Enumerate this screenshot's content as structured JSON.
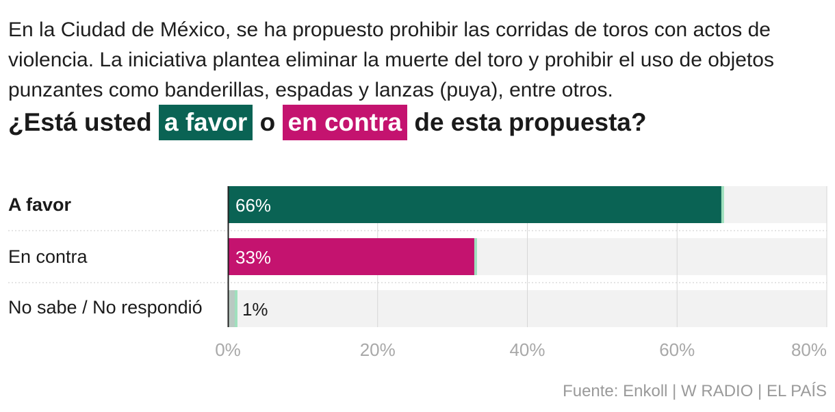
{
  "intro_text": "En la Ciudad de México, se ha propuesto prohibir las corridas de toros con actos de violencia. La iniciativa plantea eliminar la muerte del toro y prohibir el uso de objetos punzantes como banderillas, espadas y lanzas (puya), entre otros.",
  "question": {
    "before": "¿Está usted ",
    "favor": "a favor",
    "middle": " o ",
    "contra": "en contra",
    "after": " de esta propuesta?"
  },
  "colors": {
    "favor": "#0a6354",
    "contra": "#c4136f",
    "no_sabe": "#b9c9c2",
    "track": "#f2f2f2",
    "marker": "#9fe0bd",
    "grid": "#d6d6d6",
    "tick_text": "#a8a8a8",
    "axis": "#222222"
  },
  "source": "Fuente: Enkoll | W RADIO | EL PAÍS",
  "chart_data": {
    "type": "bar",
    "orientation": "horizontal",
    "title": "¿Está usted a favor o en contra de esta propuesta?",
    "categories": [
      "A favor",
      "En contra",
      "No sabe / No respondió"
    ],
    "values": [
      66,
      33,
      1
    ],
    "value_labels": [
      "66%",
      "33%",
      "1%"
    ],
    "xlim": [
      0,
      80
    ],
    "ticks": [
      0,
      20,
      40,
      60,
      80
    ],
    "tick_labels": [
      "0%",
      "20%",
      "40%",
      "60%",
      "80%"
    ],
    "xlabel": "",
    "ylabel": ""
  }
}
